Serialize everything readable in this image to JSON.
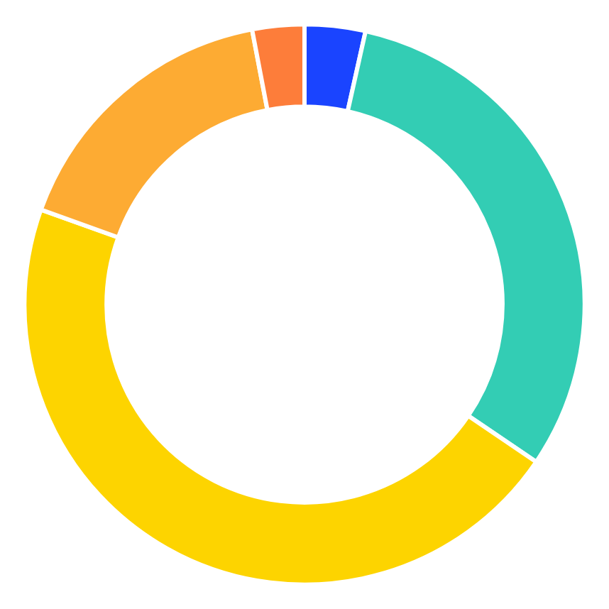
{
  "chart_data": {
    "type": "donut",
    "categories": [
      null,
      null,
      null,
      null,
      null
    ],
    "values": [
      3.5,
      31,
      46,
      16.5,
      3
    ],
    "colors": [
      "#1a44ff",
      "#33cdb4",
      "#fdd400",
      "#fdab33",
      "#fd7d3a"
    ]
  }
}
